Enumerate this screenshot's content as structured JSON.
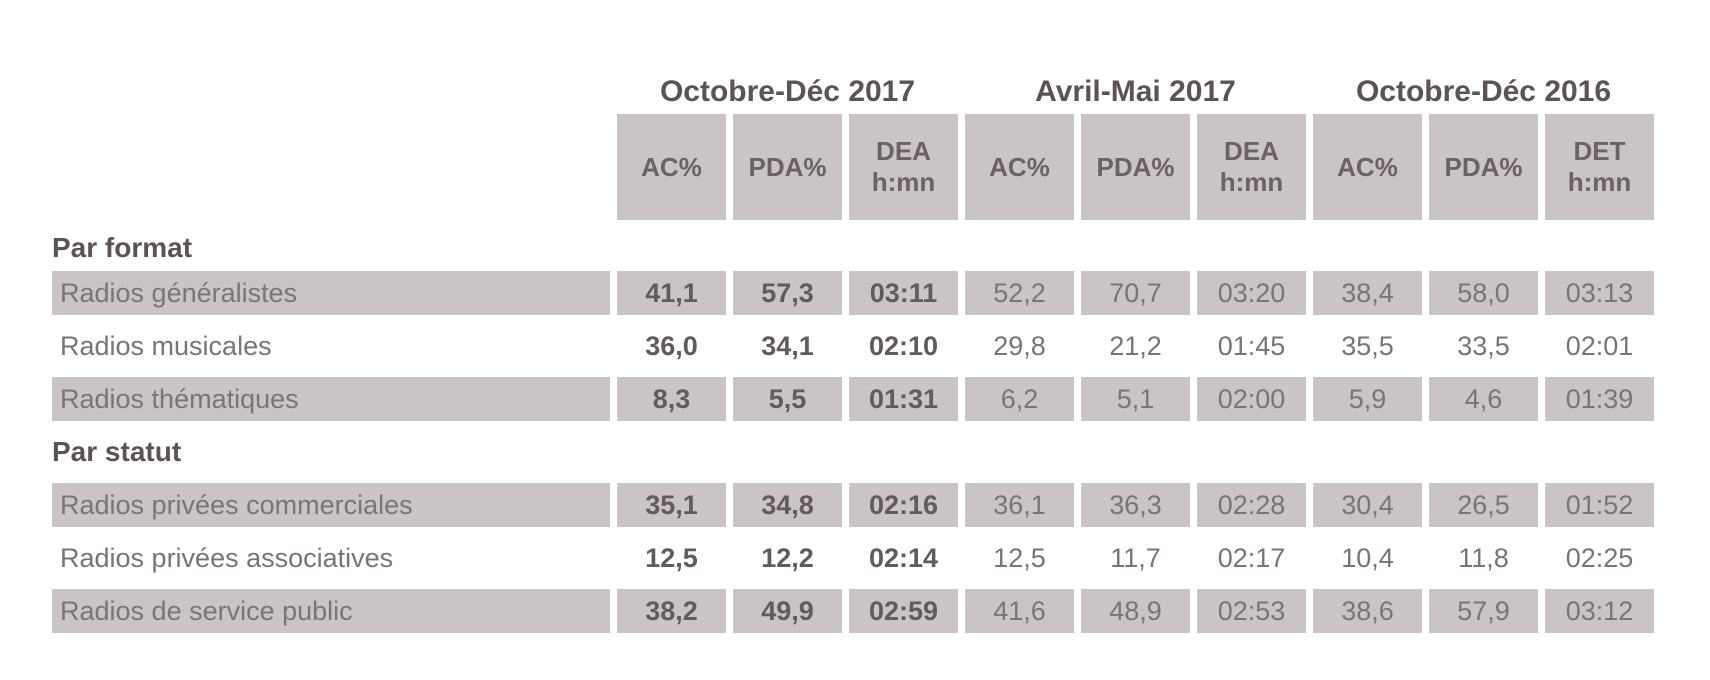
{
  "table": {
    "periods": [
      {
        "label": "Octobre-Déc 2017"
      },
      {
        "label": "Avril-Mai 2017"
      },
      {
        "label": "Octobre-Déc 2016"
      }
    ],
    "columns": [
      {
        "line1": "AC%"
      },
      {
        "line1": "PDA%"
      },
      {
        "line1": "DEA",
        "line2": "h:mn"
      },
      {
        "line1": "AC%"
      },
      {
        "line1": "PDA%"
      },
      {
        "line1": "DEA",
        "line2": "h:mn"
      },
      {
        "line1": "AC%"
      },
      {
        "line1": "PDA%"
      },
      {
        "line1": "DET",
        "line2": "h:mn"
      }
    ],
    "sections": [
      {
        "title": "Par format",
        "rows": [
          {
            "label": "Radios généralistes",
            "values": [
              "41,1",
              "57,3",
              "03:11",
              "52,2",
              "70,7",
              "03:20",
              "38,4",
              "58,0",
              "03:13"
            ]
          },
          {
            "label": "Radios musicales",
            "values": [
              "36,0",
              "34,1",
              "02:10",
              "29,8",
              "21,2",
              "01:45",
              "35,5",
              "33,5",
              "02:01"
            ]
          },
          {
            "label": "Radios thématiques",
            "values": [
              "8,3",
              "5,5",
              "01:31",
              "6,2",
              "5,1",
              "02:00",
              "5,9",
              "4,6",
              "01:39"
            ]
          }
        ]
      },
      {
        "title": "Par statut",
        "rows": [
          {
            "label": "Radios privées commerciales",
            "values": [
              "35,1",
              "34,8",
              "02:16",
              "36,1",
              "36,3",
              "02:28",
              "30,4",
              "26,5",
              "01:52"
            ]
          },
          {
            "label": "Radios privées associatives",
            "values": [
              "12,5",
              "12,2",
              "02:14",
              "12,5",
              "11,7",
              "02:17",
              "10,4",
              "11,8",
              "02:25"
            ]
          },
          {
            "label": "Radios de service public",
            "values": [
              "38,2",
              "49,9",
              "02:59",
              "41,6",
              "48,9",
              "02:53",
              "38,6",
              "57,9",
              "03:12"
            ]
          }
        ]
      }
    ]
  },
  "colors": {
    "cell_background": "#cbc4c4",
    "page_background": "#ffffff",
    "dark_text": "#5c5356",
    "header_text": "#6b6265",
    "bold_value_text": "#625a5c",
    "regular_text": "#7b7376"
  }
}
